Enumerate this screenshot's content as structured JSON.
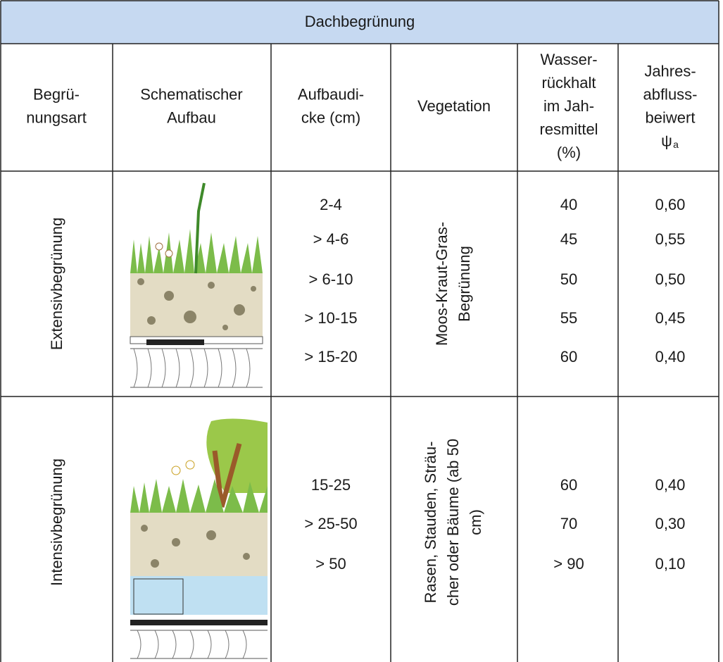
{
  "title": "Dachbegrünung",
  "columns": [
    {
      "lines": [
        "Begrü-",
        "nungsart"
      ]
    },
    {
      "lines": [
        "Schematischer",
        "Aufbau"
      ]
    },
    {
      "lines": [
        "Aufbaudi-",
        "cke (cm)"
      ]
    },
    {
      "lines": [
        "Vegetation"
      ]
    },
    {
      "lines": [
        "Wasser-",
        "rückhalt",
        "im Jah-",
        "resmittel",
        "(%)"
      ]
    },
    {
      "lines": [
        "Jahres-",
        "abfluss-",
        "beiwert"
      ],
      "symbol": "ψ",
      "subscript": "a"
    }
  ],
  "rows": [
    {
      "type": "Extensivbegrünung",
      "thickness": [
        "2-4",
        "> 4-6",
        "> 6-10",
        "> 10-15",
        "> 15-20"
      ],
      "vegetation": [
        "Moos-Kraut-Gras-",
        "Begrünung"
      ],
      "retention": [
        "40",
        "45",
        "50",
        "55",
        "60"
      ],
      "coefficient": [
        "0,60",
        "0,55",
        "0,50",
        "0,45",
        "0,40"
      ]
    },
    {
      "type": "Intensivbegrünung",
      "thickness": [
        "15-25",
        "> 25-50",
        "> 50"
      ],
      "vegetation": [
        "Rasen, Stauden, Sträu-",
        "cher oder Bäume (ab 50",
        "cm)"
      ],
      "retention": [
        "60",
        "70",
        "> 90"
      ],
      "coefficient": [
        "0,40",
        "0,30",
        "0,10"
      ]
    }
  ]
}
